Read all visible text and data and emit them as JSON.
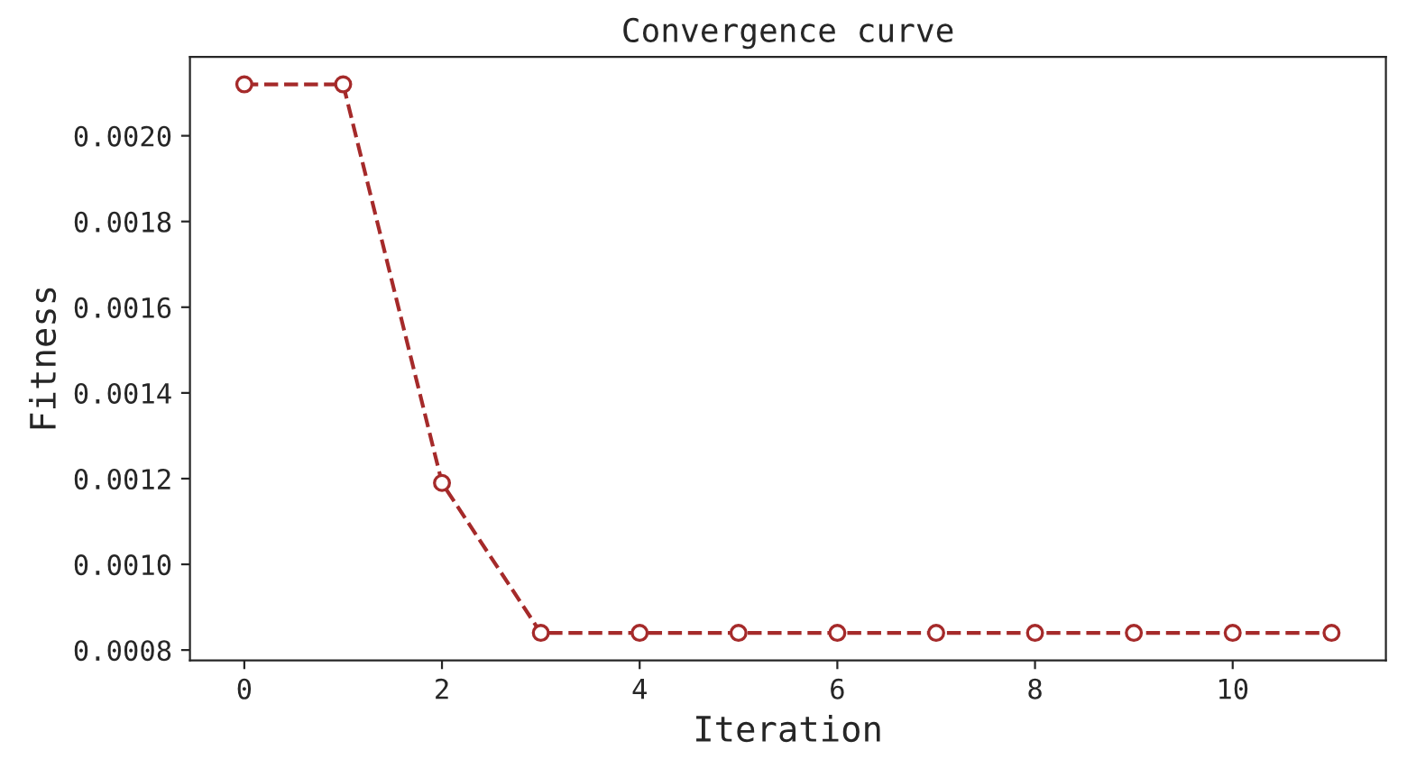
{
  "chart_data": {
    "type": "line",
    "title": "Convergence curve",
    "xlabel": "Iteration",
    "ylabel": "Fitness",
    "x": [
      0,
      1,
      2,
      3,
      4,
      5,
      6,
      7,
      8,
      9,
      10,
      11
    ],
    "series": [
      {
        "color": "#a52a2a",
        "values": [
          0.00212,
          0.00212,
          0.00119,
          0.00084,
          0.00084,
          0.00084,
          0.00084,
          0.00084,
          0.00084,
          0.00084,
          0.00084,
          0.00084
        ]
      }
    ],
    "xlim": [
      -0.55,
      11.55
    ],
    "xticks": [
      0,
      2,
      4,
      6,
      8,
      10
    ],
    "ylim": [
      0.000776,
      0.002184
    ],
    "yticks": [
      0.0008,
      {
        "value": 0.001,
        "label": "0.0010"
      },
      0.0012,
      0.0014,
      0.0016,
      0.0018,
      {
        "value": 0.002,
        "label": "0.0020"
      }
    ],
    "marker": "circle",
    "line_style": "dashed",
    "grid": false,
    "legend": false
  }
}
